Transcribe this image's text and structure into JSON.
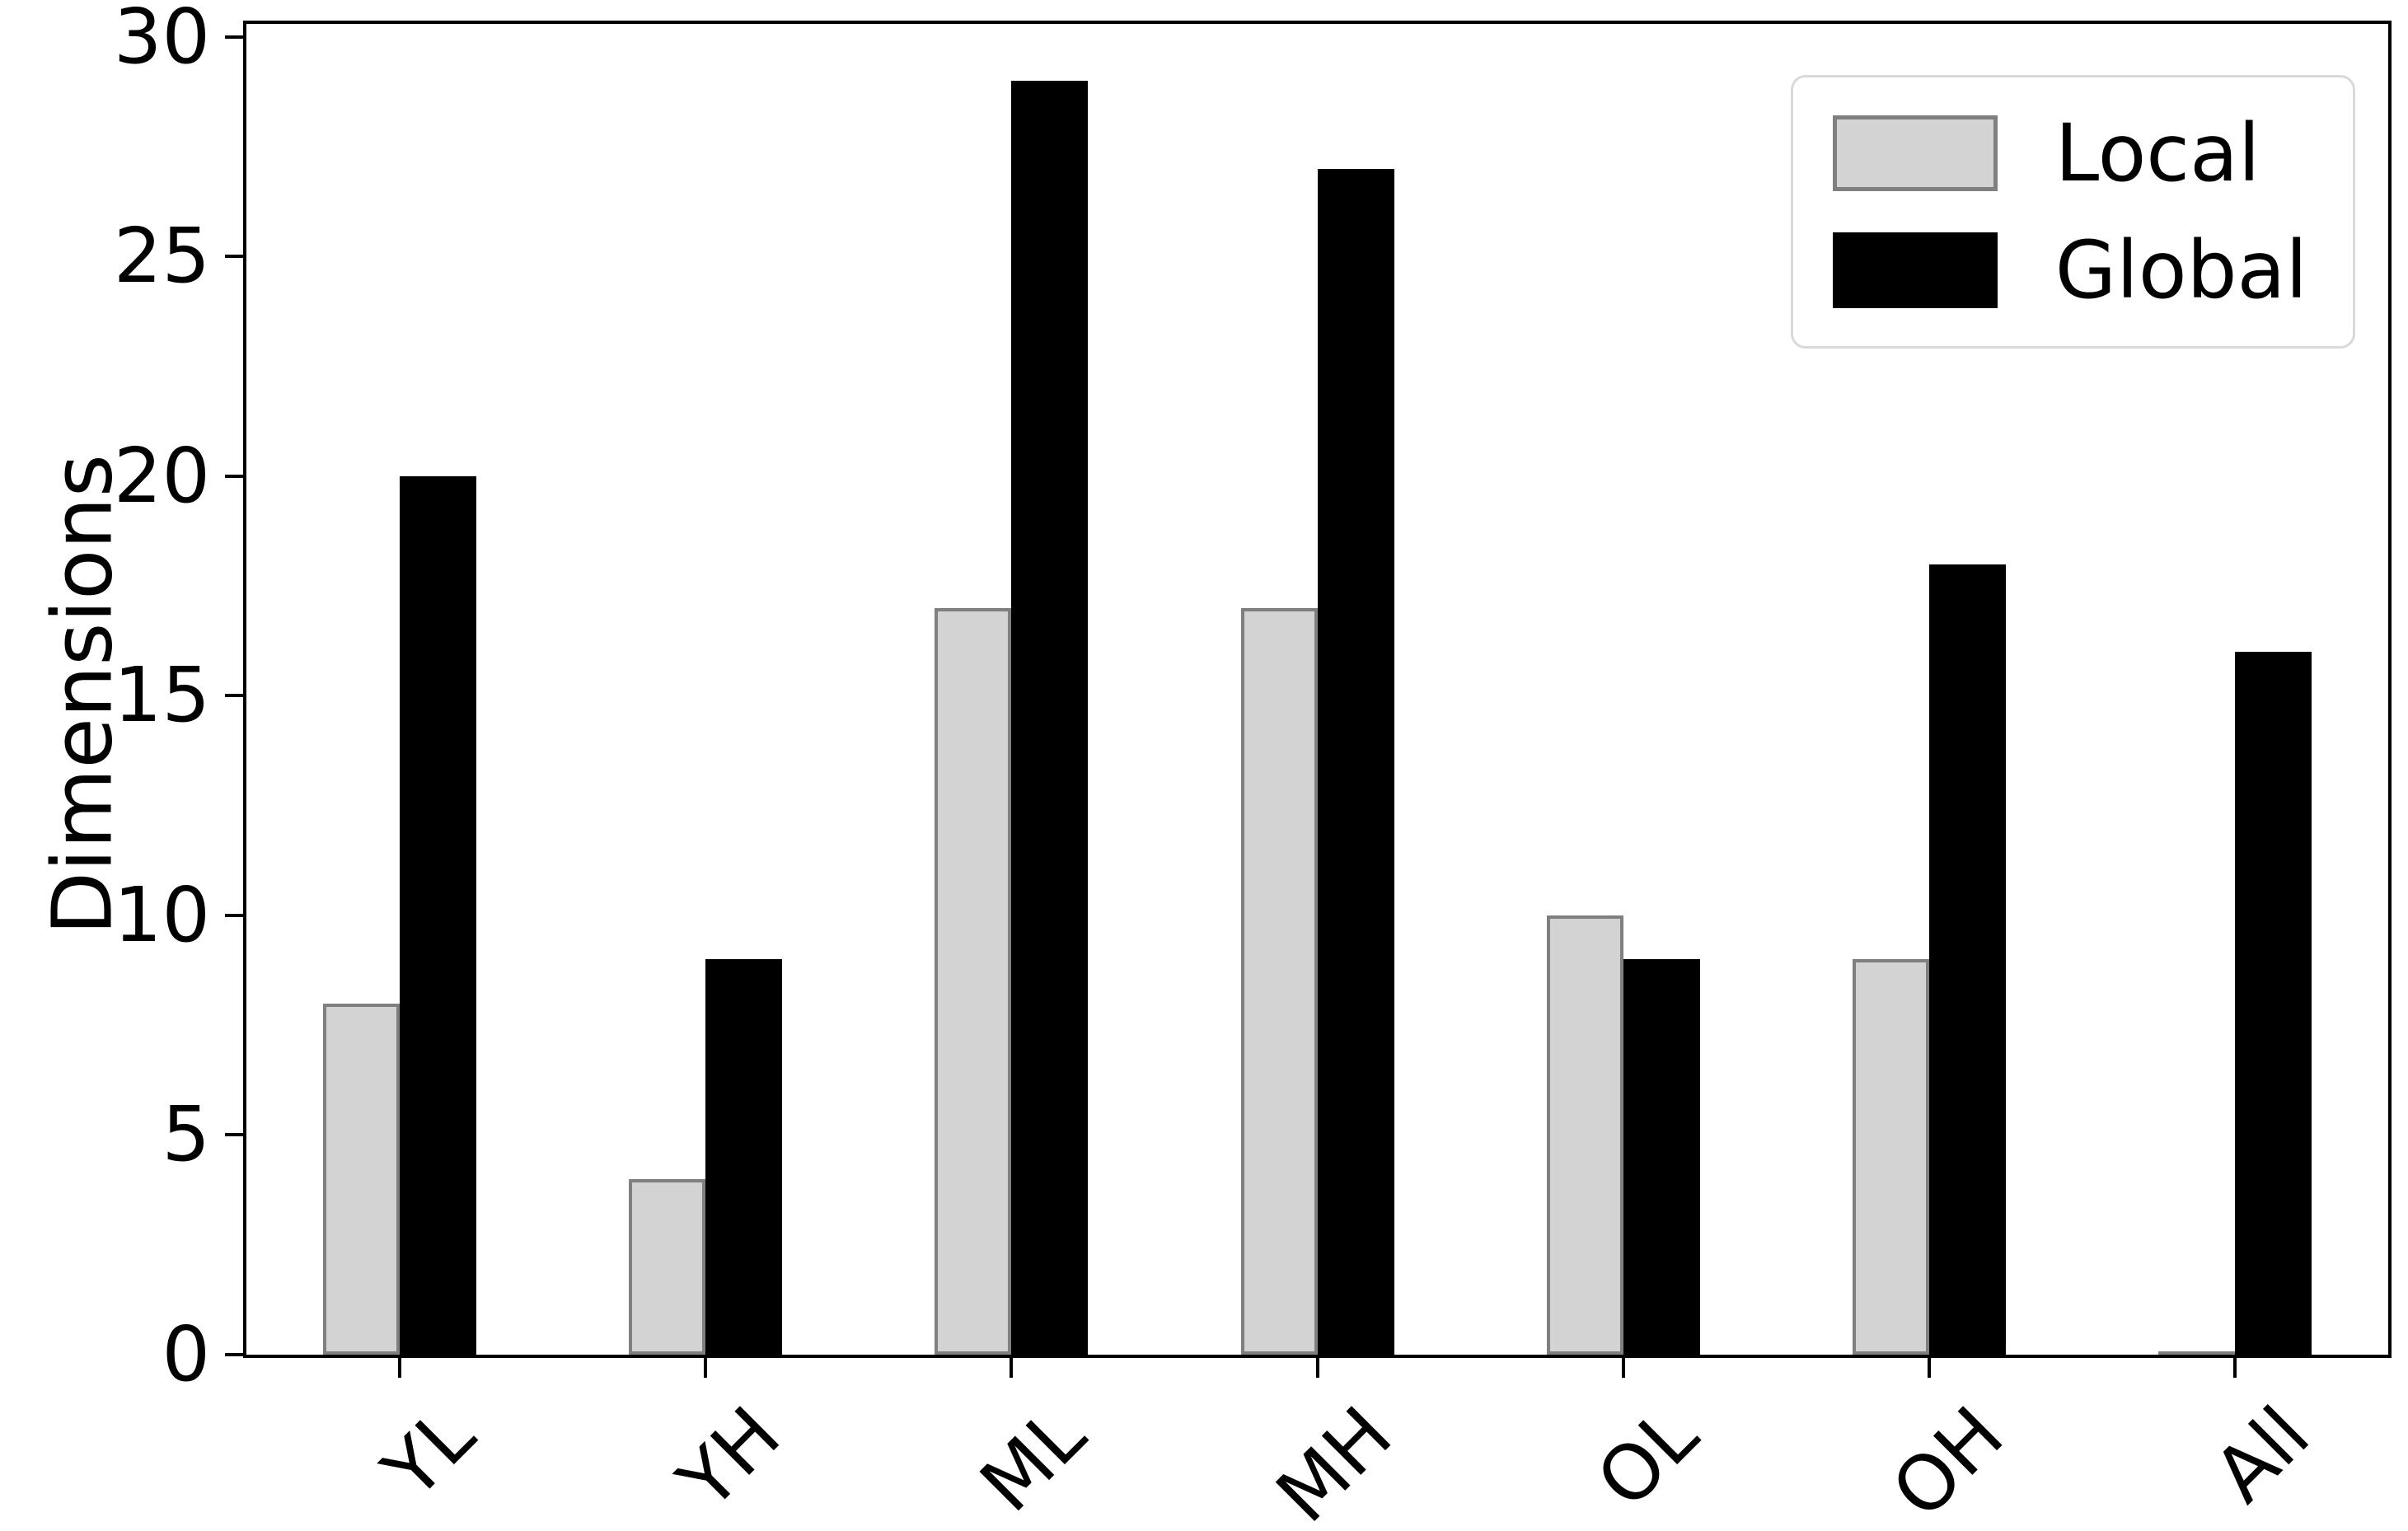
{
  "chart_data": {
    "type": "bar",
    "title": "",
    "xlabel": "",
    "ylabel": "Dimensions",
    "categories": [
      "YL",
      "YH",
      "ML",
      "MH",
      "OL",
      "OH",
      "All"
    ],
    "series": [
      {
        "name": "Local",
        "values": [
          8,
          4,
          17,
          17,
          10,
          9,
          0
        ],
        "fill": "#d3d3d3",
        "edge": "#7f7f7f"
      },
      {
        "name": "Global",
        "values": [
          20,
          9,
          29,
          27,
          9,
          18,
          16
        ],
        "fill": "#000000",
        "edge": "#000000"
      }
    ],
    "yticks": [
      0,
      5,
      10,
      15,
      20,
      25,
      30
    ],
    "ylim": [
      0,
      30.3
    ],
    "grid": false,
    "legend_position": "upper right",
    "x_tick_label_rotation_deg": 45
  },
  "colors": {
    "background": "#ffffff",
    "axis": "#000000",
    "text": "#000000",
    "legend_border": "#d9d9d9"
  }
}
